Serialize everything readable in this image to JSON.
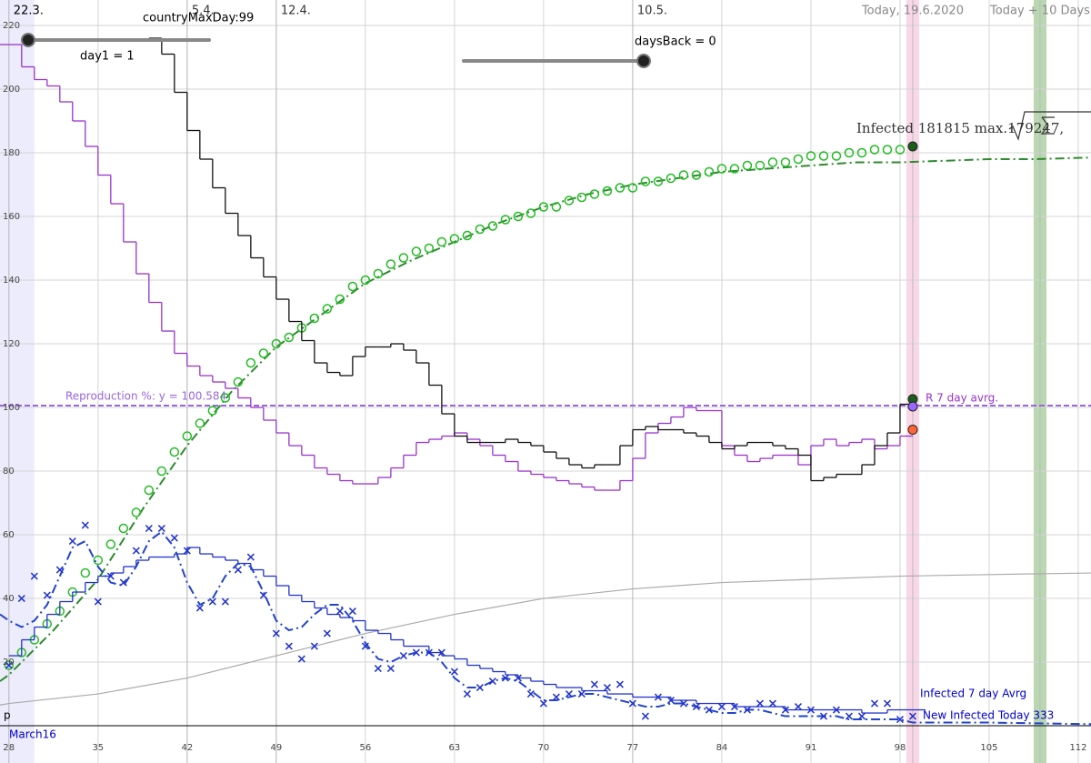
{
  "controls": [
    {
      "label": "day1 = 1"
    },
    {
      "label": "countryMaxDay:99"
    },
    {
      "label": "daysBack = 0"
    }
  ],
  "chart_data": {
    "type": "line",
    "xlim": [
      27.3,
      113
    ],
    "ylim": [
      -11.7,
      228
    ],
    "xticks": [
      28,
      35,
      42,
      49,
      56,
      63,
      70,
      77,
      84,
      91,
      98,
      105,
      112
    ],
    "yticks": [
      20,
      40,
      60,
      80,
      100,
      120,
      140,
      160,
      180,
      200,
      220
    ],
    "grid": true,
    "dates": [
      {
        "x": 28,
        "label": "22.3."
      },
      {
        "x": 42,
        "label": "5.4."
      },
      {
        "x": 49,
        "label": "12.4."
      },
      {
        "x": 77,
        "label": "10.5."
      },
      {
        "x": 99,
        "label": "Today, 19.6.2020"
      },
      {
        "x": 109,
        "label": "Today + 10 Days"
      }
    ],
    "bands": [
      {
        "from": 27.3,
        "to": 30,
        "color": "#ececfc"
      },
      {
        "from": 98.5,
        "to": 99.5,
        "color": "#f8d8e6"
      },
      {
        "from": 108.5,
        "to": 109.5,
        "color": "#b9d7b0"
      }
    ],
    "hline": {
      "value": 100.584,
      "label": "Reproduction %: y = 100.584",
      "color": "#9966dd"
    },
    "series": [
      {
        "style": "line",
        "color": "#aaaaaa",
        "x": [
          27.3,
          28,
          35,
          42,
          49,
          56,
          63,
          70,
          77,
          84,
          91,
          98,
          105,
          113
        ],
        "values": [
          6.5,
          7,
          10,
          15,
          22,
          29,
          35,
          40,
          43,
          45,
          46,
          47,
          47.5,
          48
        ]
      },
      {
        "style": "dashdot",
        "color": "#2e8b2e",
        "x": [
          27.3,
          28,
          31.5,
          35,
          38.5,
          42,
          45.5,
          49,
          52.5,
          56,
          59.5,
          63,
          66.5,
          70,
          73.5,
          77,
          80.5,
          84,
          87.5,
          91,
          94.5,
          98,
          101.5,
          105,
          108.5,
          113
        ],
        "values": [
          14,
          16,
          30,
          46,
          68,
          88,
          105,
          119,
          129,
          139,
          146,
          152,
          158,
          163,
          167,
          170,
          172,
          174,
          175,
          176,
          177,
          177,
          177.5,
          178,
          178,
          178.5
        ]
      },
      {
        "style": "circles",
        "color": "#22bb22",
        "x": [
          28,
          29,
          30,
          31,
          32,
          33,
          34,
          35,
          36,
          37,
          38,
          39,
          40,
          41,
          42,
          43,
          44,
          45,
          46,
          47,
          48,
          49,
          50,
          51,
          52,
          53,
          54,
          55,
          56,
          57,
          58,
          59,
          60,
          61,
          62,
          63,
          64,
          65,
          66,
          67,
          68,
          69,
          70,
          71,
          72,
          73,
          74,
          75,
          76,
          77,
          78,
          79,
          80,
          81,
          82,
          83,
          84,
          85,
          86,
          87,
          88,
          89,
          90,
          91,
          92,
          93,
          94,
          95,
          96,
          97,
          98
        ],
        "values": [
          19,
          23,
          27,
          32,
          36,
          42,
          48,
          52,
          57,
          62,
          67,
          74,
          80,
          86,
          91,
          95,
          99,
          103,
          108,
          114,
          117,
          120,
          122,
          125,
          128,
          131,
          134,
          138,
          140,
          142,
          145,
          147,
          149,
          150,
          152,
          153,
          154,
          156,
          157,
          159,
          160,
          161,
          163,
          163,
          165,
          166,
          167,
          168,
          169,
          169,
          171,
          171,
          172,
          173,
          173,
          174,
          175,
          175,
          176,
          176,
          177,
          177,
          178,
          179,
          179,
          179,
          180,
          180,
          181,
          181,
          181
        ]
      },
      {
        "style": "step",
        "color": "#9933cc",
        "x": [
          27,
          28,
          29,
          30,
          31,
          32,
          33,
          34,
          35,
          36,
          37,
          38,
          39,
          40,
          41,
          42,
          43,
          44,
          45,
          46,
          47,
          48,
          49,
          50,
          51,
          52,
          53,
          54,
          55,
          56,
          57,
          58,
          59,
          60,
          61,
          62,
          63,
          64,
          65,
          66,
          67,
          68,
          69,
          70,
          71,
          72,
          73,
          74,
          75,
          76,
          77,
          78,
          79,
          80,
          81,
          82,
          83,
          84,
          85,
          86,
          87,
          88,
          89,
          90,
          91,
          92,
          93,
          94,
          95,
          96,
          97,
          98
        ],
        "values": [
          214,
          214,
          207,
          203,
          201,
          196,
          190,
          182,
          173,
          164,
          152,
          142,
          133,
          124,
          117,
          113,
          110,
          108,
          106,
          103,
          100,
          96,
          92,
          88,
          85,
          81,
          79,
          77,
          76,
          76,
          78,
          81,
          85,
          89,
          90,
          91,
          92,
          90,
          88,
          85,
          83,
          80,
          79,
          78,
          77,
          76,
          75,
          74,
          74,
          77,
          84,
          92,
          95,
          97,
          100,
          99,
          99,
          88,
          85,
          83,
          84,
          85,
          85,
          82,
          88,
          90,
          88,
          89,
          90,
          87,
          88,
          91
        ]
      },
      {
        "style": "step",
        "color": "#111111",
        "x": [
          39,
          40,
          41,
          42,
          43,
          44,
          45,
          46,
          47,
          48,
          49,
          50,
          51,
          52,
          53,
          54,
          55,
          56,
          57,
          58,
          59,
          60,
          61,
          62,
          63,
          64,
          65,
          66,
          67,
          68,
          69,
          70,
          71,
          72,
          73,
          74,
          75,
          76,
          77,
          78,
          79,
          80,
          81,
          82,
          83,
          84,
          85,
          86,
          87,
          88,
          89,
          90,
          91,
          92,
          93,
          94,
          95,
          96,
          97,
          98
        ],
        "values": [
          216,
          211,
          199,
          187,
          178,
          169,
          161,
          154,
          147,
          141,
          134,
          127,
          121,
          114,
          111,
          110,
          116,
          119,
          119,
          120,
          118,
          114,
          107,
          98,
          91,
          89,
          89,
          89,
          90,
          89,
          88,
          86,
          84,
          82,
          81,
          82,
          82,
          88,
          93,
          94,
          93,
          93,
          92,
          91,
          89,
          87,
          88,
          89,
          89,
          88,
          87,
          85,
          77,
          78,
          79,
          79,
          82,
          88,
          92,
          101
        ]
      },
      {
        "style": "step",
        "color": "#2233cc",
        "x": [
          28,
          29,
          30,
          31,
          32,
          33,
          34,
          35,
          36,
          37,
          38,
          39,
          40,
          41,
          42,
          43,
          44,
          45,
          46,
          47,
          48,
          49,
          50,
          51,
          52,
          53,
          54,
          55,
          56,
          57,
          58,
          59,
          60,
          61,
          62,
          63,
          64,
          65,
          66,
          67,
          68,
          69,
          70,
          71,
          72,
          73,
          74,
          75,
          76,
          77,
          78,
          79,
          80,
          81,
          82,
          83,
          84,
          85,
          86,
          87,
          88,
          89,
          90,
          91,
          92,
          93,
          94,
          95,
          96,
          97,
          98,
          99
        ],
        "values": [
          22,
          27,
          31,
          35,
          39,
          42,
          45,
          47,
          48,
          50,
          52,
          53,
          53,
          54,
          56,
          54,
          53,
          52,
          51,
          49,
          47,
          44,
          41,
          39,
          37,
          35,
          34,
          33,
          30,
          29,
          27,
          25,
          25,
          23,
          22,
          21,
          19,
          18,
          17,
          16,
          15,
          14,
          13,
          12,
          12,
          11,
          11,
          10,
          10,
          9,
          9,
          9,
          8,
          8,
          7,
          7,
          7,
          6,
          6,
          6,
          6,
          5,
          5,
          5,
          5,
          5,
          5,
          4,
          4,
          5,
          5,
          5
        ]
      },
      {
        "style": "dashdot",
        "color": "#2244cc",
        "x": [
          27.3,
          28,
          29,
          30,
          31,
          32,
          33,
          34,
          35,
          36,
          37,
          38,
          39,
          40,
          41,
          42,
          43,
          44,
          45,
          46,
          47,
          48,
          49,
          50,
          51,
          52,
          53,
          54,
          55,
          56,
          57,
          58,
          59,
          60,
          61,
          62,
          63,
          64,
          65,
          66,
          67,
          68,
          69,
          70,
          71,
          72,
          73,
          74,
          75,
          76,
          77,
          78,
          79,
          80,
          81,
          82,
          83,
          84,
          85,
          86,
          87,
          88,
          89,
          90,
          91,
          92,
          93,
          94,
          95,
          96,
          97,
          98,
          99,
          105,
          113
        ],
        "values": [
          35,
          33,
          31,
          33,
          38,
          47,
          56,
          58,
          50,
          45,
          44,
          50,
          58,
          61,
          56,
          45,
          38,
          40,
          47,
          51,
          50,
          42,
          33,
          30,
          31,
          35,
          38,
          38,
          33,
          26,
          21,
          20,
          22,
          23,
          23,
          20,
          15,
          12,
          12,
          14,
          15,
          14,
          11,
          8,
          8,
          9,
          10,
          10,
          9,
          8,
          7,
          6,
          6,
          7,
          7,
          6,
          5,
          4,
          4,
          5,
          5,
          4,
          3,
          3,
          3,
          3,
          3,
          2,
          2,
          2,
          2,
          2,
          1,
          1,
          0.5
        ]
      },
      {
        "style": "crosses",
        "color": "#2233cc",
        "x": [
          28,
          29,
          30,
          31,
          32,
          33,
          34,
          35,
          36,
          37,
          38,
          39,
          40,
          41,
          42,
          43,
          44,
          45,
          46,
          47,
          48,
          49,
          50,
          51,
          52,
          53,
          54,
          55,
          56,
          57,
          58,
          59,
          60,
          61,
          62,
          63,
          64,
          65,
          66,
          67,
          68,
          69,
          70,
          71,
          72,
          73,
          74,
          75,
          76,
          77,
          78,
          79,
          80,
          81,
          82,
          83,
          84,
          85,
          86,
          87,
          88,
          89,
          90,
          91,
          92,
          93,
          94,
          95,
          96,
          97,
          98,
          99
        ],
        "values": [
          19,
          40,
          47,
          41,
          49,
          58,
          63,
          39,
          47,
          45,
          55,
          62,
          62,
          59,
          55,
          37,
          39,
          39,
          49,
          53,
          41,
          29,
          25,
          21,
          25,
          29,
          36,
          36,
          25,
          18,
          18,
          22,
          23,
          23,
          23,
          17,
          10,
          12,
          14,
          15,
          15,
          10,
          7,
          9,
          10,
          10,
          13,
          12,
          13,
          7,
          3,
          9,
          8,
          7,
          6,
          5,
          6,
          6,
          5,
          7,
          7,
          5,
          6,
          5,
          3,
          5,
          3,
          3,
          7,
          7,
          2,
          3
        ]
      }
    ],
    "markers": [
      {
        "x": 99,
        "y": 182,
        "color": "#1a5e1a"
      },
      {
        "x": 99,
        "y": 102.6,
        "color": "#1a5e1a"
      },
      {
        "x": 99,
        "y": 100.3,
        "color": "#9966ff"
      },
      {
        "x": 99,
        "y": 93,
        "color": "#ff6633"
      }
    ],
    "notes": [
      "Infected 181815 max.179247,",
      "R 7 day avrg.",
      "Infected 7 day Avrg",
      "New Infected Today 333",
      "March16",
      "p"
    ]
  }
}
